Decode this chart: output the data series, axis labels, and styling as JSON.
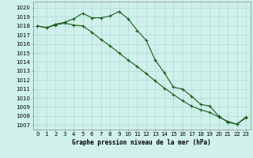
{
  "title": "Graphe pression niveau de la mer (hPa)",
  "background_color": "#cff0eb",
  "grid_color": "#aaddd8",
  "line_color": "#1a5c1a",
  "marker_color": "#1a5c1a",
  "xlim": [
    -0.5,
    23.5
  ],
  "ylim": [
    1006.5,
    1020.7
  ],
  "xticks": [
    0,
    1,
    2,
    3,
    4,
    5,
    6,
    7,
    8,
    9,
    10,
    11,
    12,
    13,
    14,
    15,
    16,
    17,
    18,
    19,
    20,
    21,
    22,
    23
  ],
  "yticks": [
    1007,
    1008,
    1009,
    1010,
    1011,
    1012,
    1013,
    1014,
    1015,
    1016,
    1017,
    1018,
    1019,
    1020
  ],
  "series1_x": [
    0,
    1,
    2,
    3,
    4,
    5,
    6,
    7,
    8,
    9,
    10,
    11,
    12,
    13,
    14,
    15,
    16,
    17,
    18,
    19,
    20,
    21,
    22,
    23
  ],
  "series1_y": [
    1018.0,
    1017.8,
    1018.2,
    1018.4,
    1018.8,
    1019.4,
    1018.9,
    1018.9,
    1019.1,
    1019.6,
    1018.8,
    1017.5,
    1016.4,
    1014.2,
    1012.8,
    1011.2,
    1011.0,
    1010.2,
    1009.3,
    1009.1,
    1008.0,
    1007.3,
    1007.1,
    1007.8
  ],
  "series2_x": [
    0,
    1,
    2,
    3,
    4,
    5,
    6,
    7,
    8,
    9,
    10,
    11,
    12,
    13,
    14,
    15,
    16,
    17,
    18,
    19,
    20,
    21,
    22,
    23
  ],
  "series2_y": [
    1018.0,
    1017.8,
    1018.1,
    1018.3,
    1018.1,
    1018.0,
    1017.3,
    1016.5,
    1015.8,
    1015.0,
    1014.2,
    1013.5,
    1012.7,
    1011.9,
    1011.1,
    1010.4,
    1009.7,
    1009.1,
    1008.7,
    1008.4,
    1007.9,
    1007.4,
    1007.1,
    1007.9
  ],
  "xlabel_fontsize": 5.5,
  "tick_fontsize": 5,
  "linewidth": 0.8,
  "markersize": 3.5
}
